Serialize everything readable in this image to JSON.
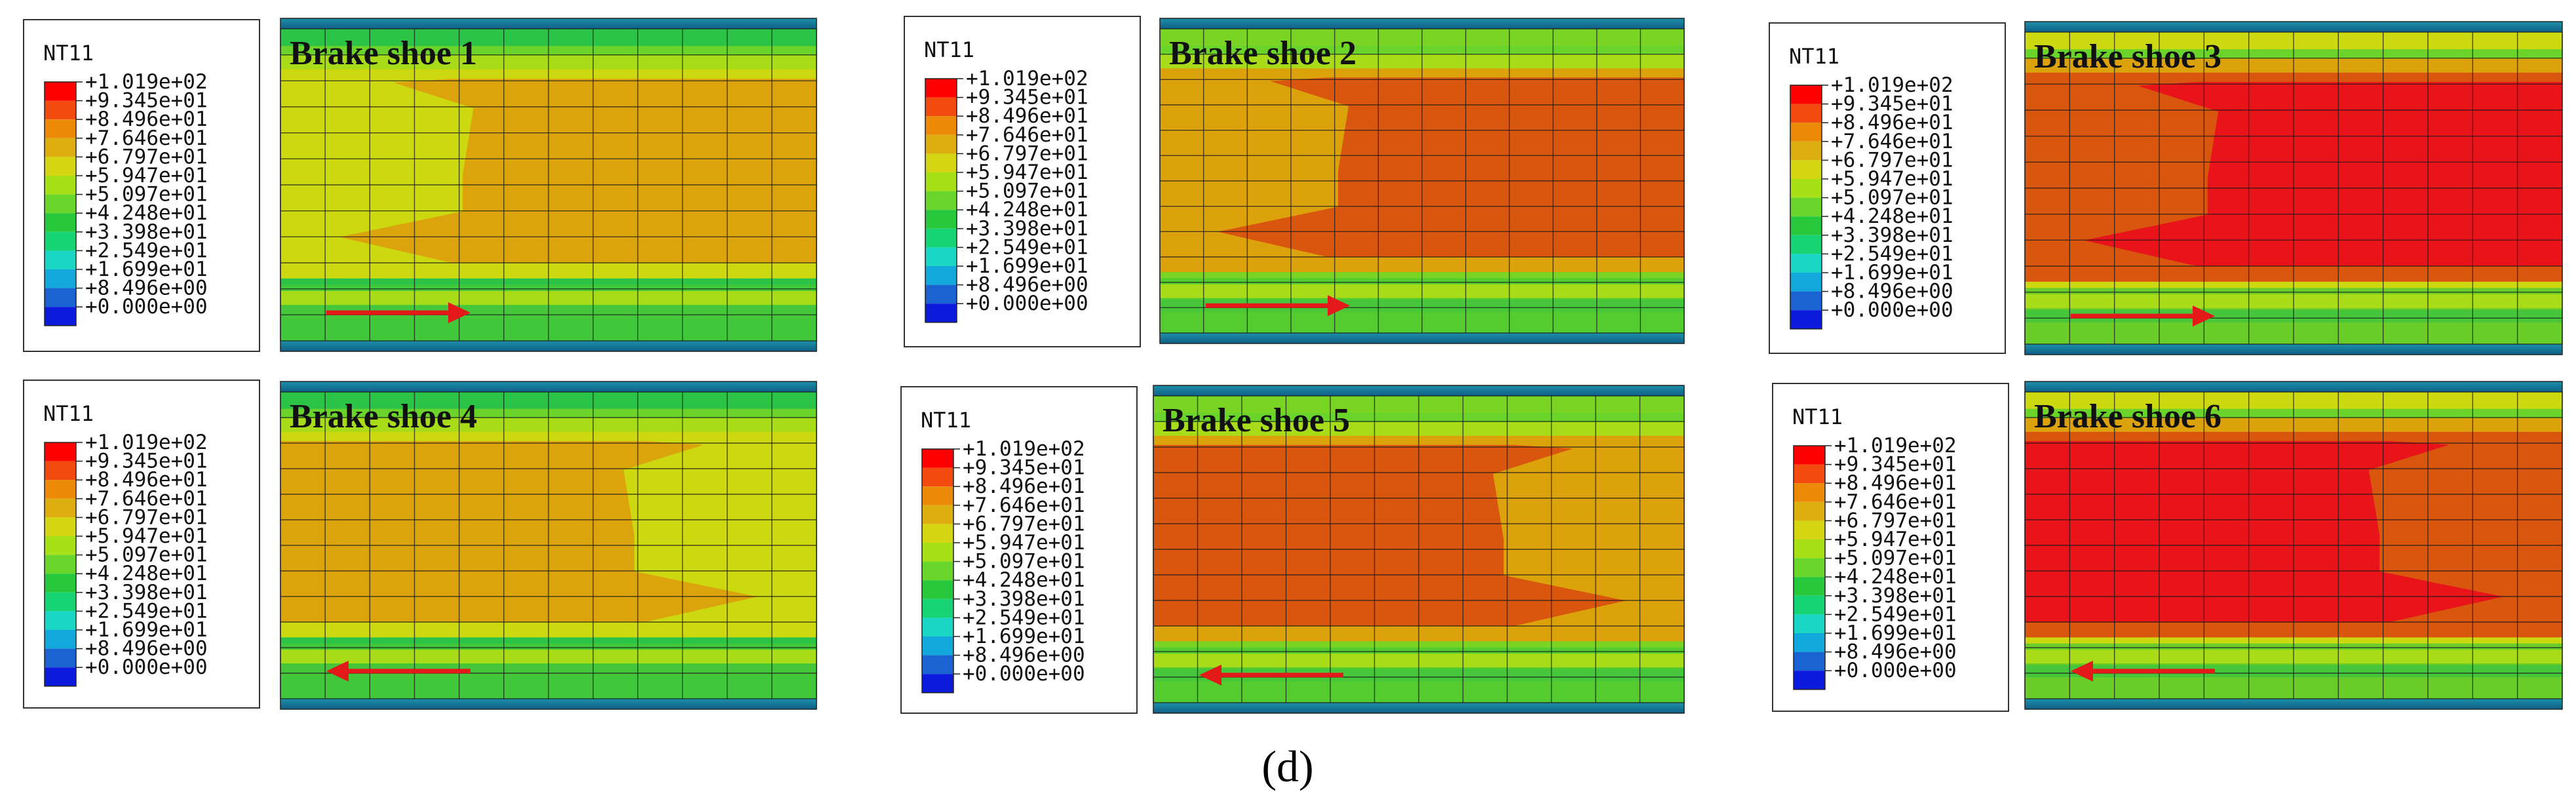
{
  "figure": {
    "caption": "(d)",
    "legend": {
      "title": "NT11",
      "values": [
        "+1.019e+02",
        "+9.345e+01",
        "+8.496e+01",
        "+7.646e+01",
        "+6.797e+01",
        "+5.947e+01",
        "+5.097e+01",
        "+4.248e+01",
        "+3.398e+01",
        "+2.549e+01",
        "+1.699e+01",
        "+8.496e+00",
        "+0.000e+00"
      ],
      "colors": [
        "#ff0000",
        "#f24a0f",
        "#ec8a08",
        "#dcae10",
        "#d4d614",
        "#a8e018",
        "#6ad62c",
        "#28c83c",
        "#16d474",
        "#1ad6c4",
        "#12a8dc",
        "#1a64d2",
        "#0c1adc"
      ]
    },
    "panels": [
      {
        "title": "Brake shoe 1",
        "arrow_direction": "right",
        "colors": {
          "inner": "#dca40c",
          "mid": "#ccd810",
          "edge_top": "#2cc448",
          "edge_bottom": "#40c83a"
        }
      },
      {
        "title": "Brake shoe 2",
        "arrow_direction": "right",
        "colors": {
          "inner": "#d8560e",
          "mid": "#dca20c",
          "edge_top": "#7ad424",
          "edge_bottom": "#54cc30"
        }
      },
      {
        "title": "Brake shoe 3",
        "arrow_direction": "right",
        "colors": {
          "inner": "#e8141a",
          "mid": "#d8560e",
          "edge_top": "#ccd810",
          "edge_bottom": "#6acc28"
        }
      },
      {
        "title": "Brake shoe 4",
        "arrow_direction": "left",
        "colors": {
          "inner": "#dca40c",
          "mid": "#ccd810",
          "edge_top": "#2cc448",
          "edge_bottom": "#40c83a"
        }
      },
      {
        "title": "Brake shoe 5",
        "arrow_direction": "left",
        "colors": {
          "inner": "#d8560e",
          "mid": "#dca20c",
          "edge_top": "#7ad424",
          "edge_bottom": "#54cc30"
        }
      },
      {
        "title": "Brake shoe 6",
        "arrow_direction": "left",
        "colors": {
          "inner": "#e8141a",
          "mid": "#d8560e",
          "edge_top": "#ccd810",
          "edge_bottom": "#6acc28"
        }
      }
    ]
  }
}
